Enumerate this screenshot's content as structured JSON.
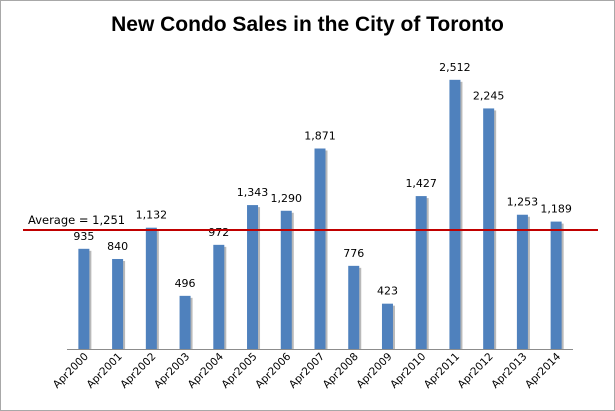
{
  "chart_data": {
    "type": "bar",
    "title": "New Condo Sales in the City of Toronto",
    "xlabel": "",
    "ylabel": "",
    "categories": [
      "Apr2000",
      "Apr2001",
      "Apr2002",
      "Apr2003",
      "Apr2004",
      "Apr2005",
      "Apr2006",
      "Apr2007",
      "Apr2008",
      "Apr2009",
      "Apr2010",
      "Apr2011",
      "Apr2012",
      "Apr2013",
      "Apr2014"
    ],
    "value_labels": [
      "935",
      "840",
      "1,132",
      "496",
      "972",
      "1,343",
      "1,290",
      "1,871",
      "776",
      "423",
      "1,427",
      "2,512",
      "2,245",
      "1,253",
      "1,189"
    ],
    "values": [
      935,
      840,
      1132,
      496,
      972,
      1343,
      1290,
      1871,
      776,
      423,
      1427,
      2512,
      2245,
      1253,
      1189
    ],
    "ylim": [
      0,
      2700
    ],
    "grid": false,
    "legend": "none",
    "average_line": {
      "value": 1251,
      "label": "Average = 1,251"
    },
    "colors": {
      "bar": "#4F81BD",
      "bar_shadow": "#B9B9B9",
      "average_line": "#C00000",
      "axis": "#8C8C8C"
    }
  }
}
